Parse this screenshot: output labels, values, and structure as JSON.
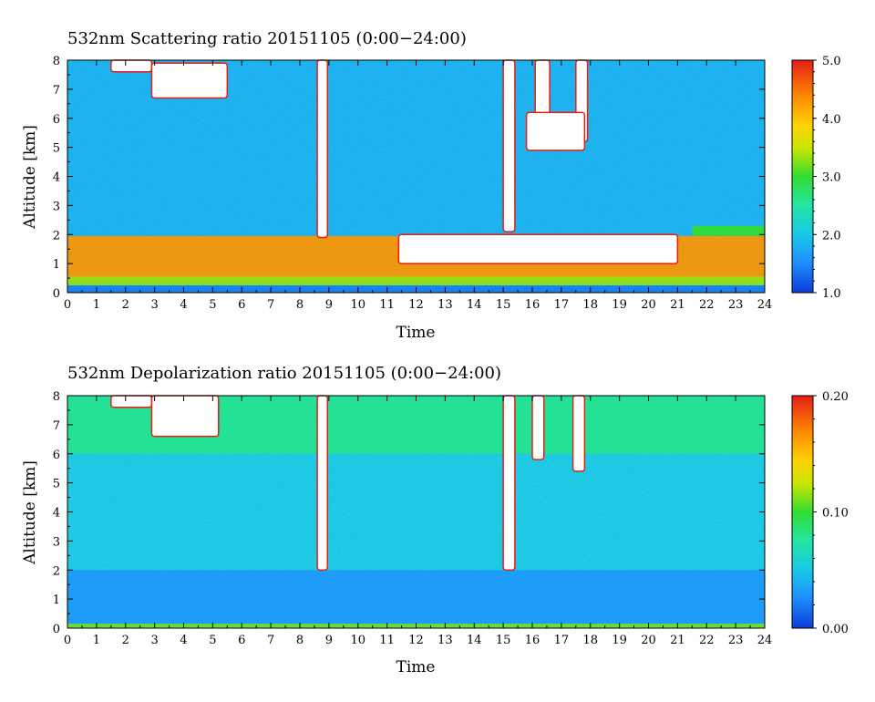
{
  "chart_data": [
    {
      "type": "heatmap",
      "title": "532nm Scattering ratio  20151105 (0:00−24:00)",
      "xlabel": "Time",
      "ylabel": "Altitude [km]",
      "xlim": [
        0,
        24
      ],
      "ylim": [
        0,
        8
      ],
      "xticks": [
        0,
        1,
        2,
        3,
        4,
        5,
        6,
        7,
        8,
        9,
        10,
        11,
        12,
        13,
        14,
        15,
        16,
        17,
        18,
        19,
        20,
        21,
        22,
        23,
        24
      ],
      "yticks": [
        0,
        1,
        2,
        3,
        4,
        5,
        6,
        7,
        8
      ],
      "colorbar": {
        "min": 1.0,
        "max": 5.0,
        "ticks": [
          "1.0",
          "2.0",
          "3.0",
          "4.0",
          "5.0"
        ]
      },
      "background_value": 1.8,
      "features": [
        {
          "kind": "layer",
          "t0": 0,
          "t1": 24,
          "z0": 0.4,
          "z1": 1.95,
          "value": 4.3
        },
        {
          "kind": "layer",
          "t0": 0,
          "t1": 24,
          "z0": 0.25,
          "z1": 0.55,
          "value": 3.3
        },
        {
          "kind": "layer",
          "t0": 0,
          "t1": 24,
          "z0": 0.0,
          "z1": 0.25,
          "value": 1.4
        },
        {
          "kind": "layer",
          "t0": 21.5,
          "t1": 24,
          "z0": 1.95,
          "z1": 2.3,
          "value": 3.0
        },
        {
          "kind": "saturated",
          "t0": 1.5,
          "t1": 2.9,
          "z0": 7.6,
          "z1": 8.0
        },
        {
          "kind": "saturated",
          "t0": 2.9,
          "t1": 5.5,
          "z0": 6.7,
          "z1": 7.9
        },
        {
          "kind": "saturated",
          "t0": 8.6,
          "t1": 8.95,
          "z0": 1.9,
          "z1": 8.0
        },
        {
          "kind": "saturated",
          "t0": 15.0,
          "t1": 15.4,
          "z0": 2.1,
          "z1": 8.0
        },
        {
          "kind": "saturated",
          "t0": 16.1,
          "t1": 16.6,
          "z0": 5.1,
          "z1": 8.0
        },
        {
          "kind": "saturated",
          "t0": 17.5,
          "t1": 17.9,
          "z0": 5.2,
          "z1": 8.0
        },
        {
          "kind": "saturated",
          "t0": 15.8,
          "t1": 17.8,
          "z0": 4.9,
          "z1": 6.2
        },
        {
          "kind": "saturated",
          "t0": 11.4,
          "t1": 21.0,
          "z0": 1.0,
          "z1": 2.0
        }
      ]
    },
    {
      "type": "heatmap",
      "title": "532nm Depolarization ratio  20151105 (0:00−24:00)",
      "xlabel": "Time",
      "ylabel": "Altitude [km]",
      "xlim": [
        0,
        24
      ],
      "ylim": [
        0,
        8
      ],
      "xticks": [
        0,
        1,
        2,
        3,
        4,
        5,
        6,
        7,
        8,
        9,
        10,
        11,
        12,
        13,
        14,
        15,
        16,
        17,
        18,
        19,
        20,
        21,
        22,
        23,
        24
      ],
      "yticks": [
        0,
        1,
        2,
        3,
        4,
        5,
        6,
        7,
        8
      ],
      "colorbar": {
        "min": 0.0,
        "max": 0.2,
        "ticks": [
          "0.00",
          "0.10",
          "0.20"
        ]
      },
      "background_value": 0.05,
      "features": [
        {
          "kind": "layer",
          "t0": 0,
          "t1": 24,
          "z0": 0.15,
          "z1": 2.0,
          "value": 0.03
        },
        {
          "kind": "layer",
          "t0": 0,
          "t1": 24,
          "z0": 0.0,
          "z1": 0.15,
          "value": 0.11
        },
        {
          "kind": "layer",
          "t0": 0,
          "t1": 24,
          "z0": 6.0,
          "z1": 8.0,
          "value": 0.08
        },
        {
          "kind": "saturated",
          "t0": 1.5,
          "t1": 2.9,
          "z0": 7.6,
          "z1": 8.0
        },
        {
          "kind": "saturated",
          "t0": 2.9,
          "t1": 5.2,
          "z0": 6.6,
          "z1": 8.0
        },
        {
          "kind": "saturated",
          "t0": 8.6,
          "t1": 8.95,
          "z0": 2.0,
          "z1": 8.0
        },
        {
          "kind": "saturated",
          "t0": 15.0,
          "t1": 15.4,
          "z0": 2.0,
          "z1": 8.0
        },
        {
          "kind": "saturated",
          "t0": 16.0,
          "t1": 16.4,
          "z0": 5.8,
          "z1": 8.0
        },
        {
          "kind": "saturated",
          "t0": 17.4,
          "t1": 17.8,
          "z0": 5.4,
          "z1": 8.0
        }
      ]
    }
  ],
  "colors": {
    "axis": "#000000",
    "saturated": "#ffffff",
    "background": "#ffffff"
  }
}
